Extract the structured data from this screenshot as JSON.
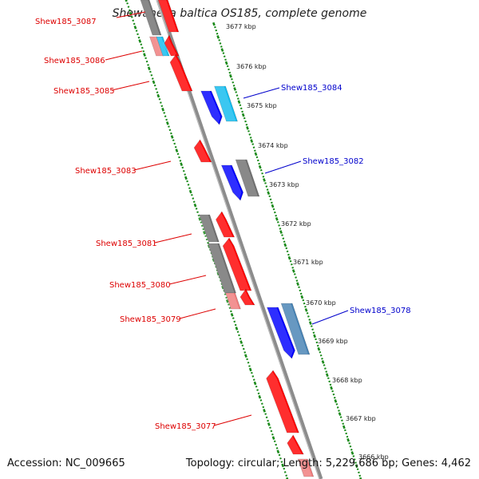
{
  "header": {
    "title": "Shewanella baltica OS185, complete genome"
  },
  "footer": {
    "accession": "Accession: NC_009665",
    "summary": "Topology: circular; Length: 5,229,686 bp; Genes: 4,462"
  },
  "colors": {
    "backbone": "#8c8c8c",
    "tick_green": "#1a8a1a",
    "label_red": "#dd0000",
    "label_blue": "#0000cc",
    "gene_red": "#ff0000",
    "gene_pink": "#f07a7a",
    "gene_gray": "#707070",
    "gene_blue": "#0000ff",
    "gene_cyan": "#11bbee",
    "gene_steel": "#4682b4"
  },
  "ruler": {
    "unit": "kbp",
    "ticks": [
      "3677 kbp",
      "3676 kbp",
      "3675 kbp",
      "3674 kbp",
      "3673 kbp",
      "3672 kbp",
      "3671 kbp",
      "3670 kbp",
      "3669 kbp",
      "3668 kbp",
      "3667 kbp",
      "3666 kbp"
    ]
  },
  "gene_labels": {
    "left": [
      "Shew185_3087",
      "Shew185_3086",
      "Shew185_3085",
      "Shew185_3083",
      "Shew185_3081",
      "Shew185_3080",
      "Shew185_3079",
      "Shew185_3077"
    ],
    "right": [
      "Shew185_3084",
      "Shew185_3082",
      "Shew185_3078"
    ]
  }
}
